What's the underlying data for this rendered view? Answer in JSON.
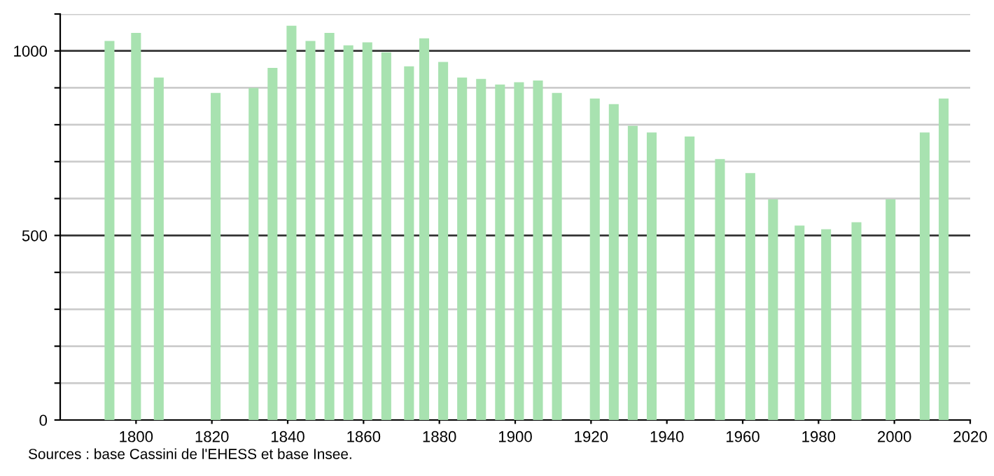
{
  "chart_data": {
    "type": "bar",
    "x": [
      1793,
      1800,
      1806,
      1821,
      1831,
      1836,
      1841,
      1846,
      1851,
      1856,
      1861,
      1866,
      1872,
      1876,
      1881,
      1886,
      1891,
      1896,
      1901,
      1906,
      1911,
      1921,
      1926,
      1931,
      1936,
      1946,
      1954,
      1962,
      1968,
      1975,
      1982,
      1990,
      1999,
      2008,
      2013
    ],
    "values": [
      1027,
      1049,
      928,
      886,
      900,
      954,
      1068,
      1027,
      1049,
      1015,
      1023,
      996,
      958,
      1034,
      970,
      928,
      924,
      909,
      915,
      920,
      886,
      871,
      856,
      797,
      779,
      768,
      707,
      669,
      598,
      527,
      517,
      536,
      598,
      779,
      871
    ],
    "color": "#a8e2b0",
    "xlim": [
      1780,
      2020
    ],
    "xticks": [
      1800,
      1820,
      1840,
      1860,
      1880,
      1900,
      1920,
      1940,
      1960,
      1980,
      2000,
      2020
    ],
    "ylim": [
      0,
      1100
    ],
    "yticks": [
      0,
      {
        "value": 100,
        "label": null
      },
      {
        "value": 200,
        "label": null
      },
      {
        "value": 300,
        "label": null
      },
      {
        "value": 400,
        "label": null
      },
      500,
      {
        "value": 600,
        "label": null
      },
      {
        "value": 700,
        "label": null
      },
      {
        "value": 800,
        "label": null
      },
      {
        "value": 900,
        "label": null
      },
      1000,
      {
        "value": 1100,
        "label": null
      }
    ],
    "grid": "y",
    "annotations": [
      "Sources : base Cassini de l'EHESS et base Insee."
    ]
  }
}
